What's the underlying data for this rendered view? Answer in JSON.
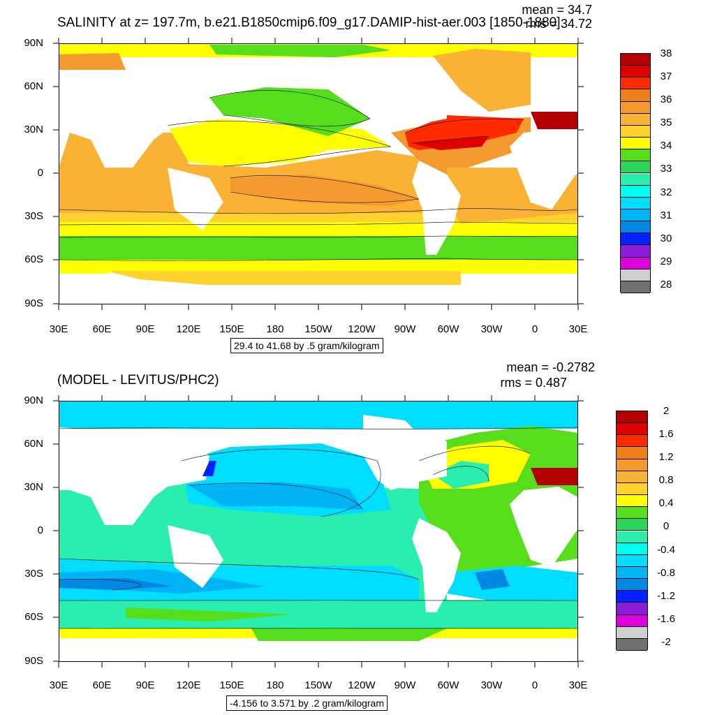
{
  "panel1": {
    "title": "SALINITY at z= 197.7m, b.e21.B1850cmip6.f09_g17.DAMIP-hist-aer.003 [1850-1880]",
    "mean": "mean = 34.7",
    "rms": "rms = 34.72",
    "info": "29.4 to 41.68 by .5 gram/kilogram",
    "colorbar_labels": [
      "38",
      "37",
      "36",
      "35",
      "34",
      "33",
      "32",
      "31",
      "30",
      "29",
      "28"
    ],
    "colorbar_colors": [
      "#b30000",
      "#dd0000",
      "#ff2a00",
      "#ee7f1d",
      "#f59a2e",
      "#f9b234",
      "#ffd22e",
      "#ffff00",
      "#56dd1c",
      "#2ad655",
      "#2aeead",
      "#00ffee",
      "#00ddff",
      "#00b3f5",
      "#0088e5",
      "#0022ff",
      "#8a1bd8",
      "#dd00dd",
      "#cfcfcf",
      "#707070"
    ]
  },
  "panel2": {
    "title": "(MODEL - LEVITUS/PHC2)",
    "mean": "mean = -0.2782",
    "rms": "rms = 0.487",
    "info": "-4.156 to 3.571 by .2 gram/kilogram",
    "colorbar_labels": [
      "2",
      "1.6",
      "1.2",
      "0.8",
      "0.4",
      "0",
      "-0.4",
      "-0.8",
      "-1.2",
      "-1.6",
      "-2"
    ],
    "colorbar_colors": [
      "#b30000",
      "#dd0000",
      "#ff2a00",
      "#ee7f1d",
      "#f59a2e",
      "#f9b234",
      "#ffd22e",
      "#ffff00",
      "#56dd1c",
      "#2ad655",
      "#2aeead",
      "#00ffee",
      "#00ddff",
      "#00b3f5",
      "#0088e5",
      "#0022ff",
      "#8a1bd8",
      "#dd00dd",
      "#cfcfcf",
      "#707070"
    ]
  },
  "axes": {
    "lat_labels": [
      "90N",
      "60N",
      "30N",
      "0",
      "30S",
      "60S",
      "90S"
    ],
    "lon_labels": [
      "30E",
      "60E",
      "90E",
      "120E",
      "150E",
      "180",
      "150W",
      "120W",
      "90W",
      "60W",
      "30W",
      "0",
      "30E"
    ]
  }
}
